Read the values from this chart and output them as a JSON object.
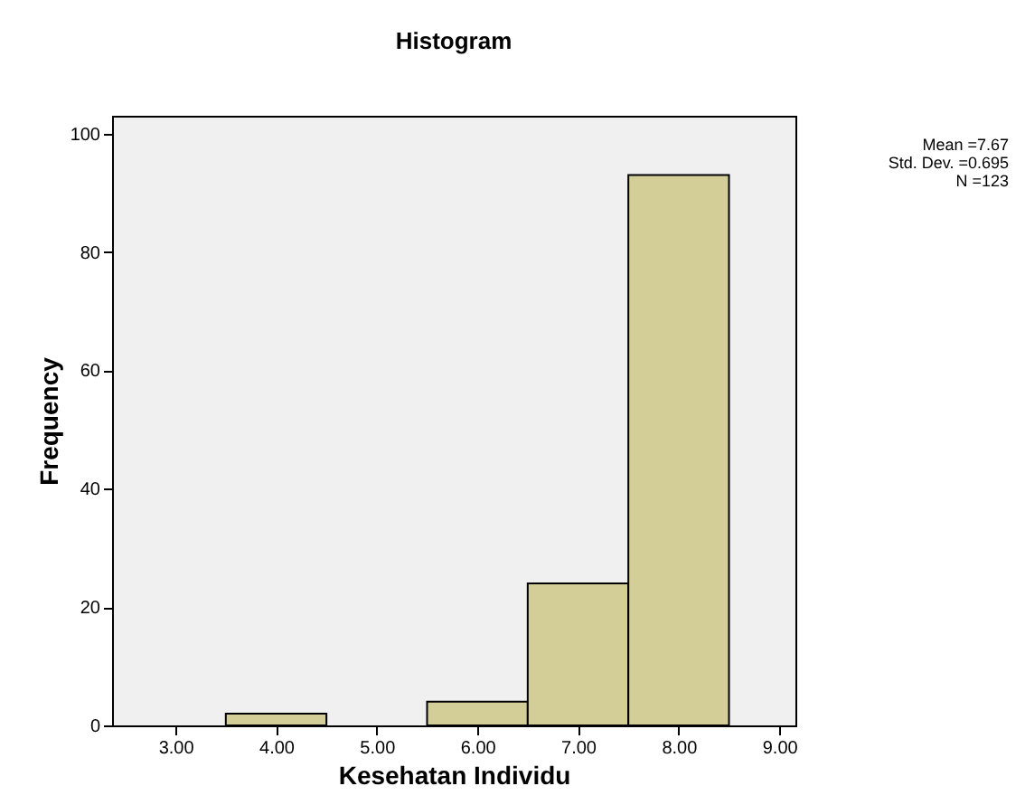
{
  "chart_data": {
    "type": "histogram",
    "title": "Histogram",
    "xlabel": "Kesehatan Individu",
    "ylabel": "Frequency",
    "bins": [
      3.5,
      4.5,
      5.5,
      6.5,
      7.5,
      8.5
    ],
    "values": [
      2,
      0,
      4,
      24,
      93
    ],
    "color": "#d3ce97",
    "xlim": [
      2.37,
      9.16
    ],
    "ylim": [
      0,
      103
    ],
    "xticks": [
      {
        "value": 3,
        "label": "3.00"
      },
      {
        "value": 4,
        "label": "4.00"
      },
      {
        "value": 5,
        "label": "5.00"
      },
      {
        "value": 6,
        "label": "6.00"
      },
      {
        "value": 7,
        "label": "7.00"
      },
      {
        "value": 8,
        "label": "8.00"
      },
      {
        "value": 9,
        "label": "9.00"
      }
    ],
    "yticks": [
      0,
      20,
      40,
      60,
      80,
      100
    ],
    "annotations": [
      "Mean =7.67",
      "Std. Dev. =0.695",
      "N =123"
    ],
    "grid": false
  }
}
